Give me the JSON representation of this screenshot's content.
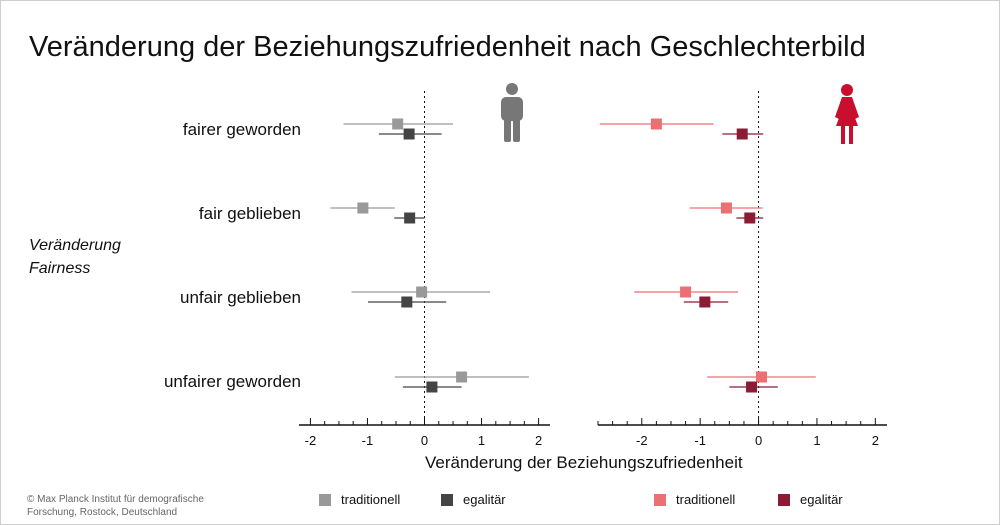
{
  "title": "Veränderung der Beziehungszufriedenheit nach Geschlechterbild",
  "y_axis_label": [
    "Veränderung",
    "Fairness"
  ],
  "x_axis_label": "Veränderung der Beziehungszufriedenheit",
  "credit": [
    "© Max Planck Institut für demografische",
    "Forschung, Rostock, Deutschland"
  ],
  "colors": {
    "men_traditional": "#999999",
    "men_egalitarian": "#444444",
    "women_traditional": "#ec6f74",
    "women_egalitarian": "#8c1b34",
    "man_icon": "#777777",
    "woman_icon": "#c8102e"
  },
  "legend": {
    "men": [
      {
        "label": "traditionell",
        "color": "#999999"
      },
      {
        "label": "egalitär",
        "color": "#444444"
      }
    ],
    "women": [
      {
        "label": "traditionell",
        "color": "#ec6f74"
      },
      {
        "label": "egalitär",
        "color": "#8c1b34"
      }
    ]
  },
  "chart_data": [
    {
      "type": "scatter",
      "panel": "men",
      "icon": "man-icon",
      "categories": [
        "fairer geworden",
        "fair geblieben",
        "unfair geblieben",
        "unfairer geworden"
      ],
      "xlim": [
        -2.2,
        2.2
      ],
      "ticks": [
        -2,
        -1,
        0,
        1,
        2
      ],
      "tick_labels": [
        "-2",
        "-1",
        "0",
        "1",
        "2"
      ],
      "reference_line": 0,
      "series": [
        {
          "name": "traditionell",
          "color": "#999999",
          "estimate": [
            -0.47,
            -1.08,
            -0.05,
            0.65
          ],
          "ci_low": [
            -1.42,
            -1.65,
            -1.28,
            -0.52
          ],
          "ci_high": [
            0.5,
            -0.52,
            1.15,
            1.83
          ]
        },
        {
          "name": "egalitär",
          "color": "#444444",
          "estimate": [
            -0.27,
            -0.26,
            -0.31,
            0.13
          ],
          "ci_low": [
            -0.8,
            -0.53,
            -0.99,
            -0.38
          ],
          "ci_high": [
            0.3,
            0.0,
            0.38,
            0.65
          ]
        }
      ]
    },
    {
      "type": "scatter",
      "panel": "women",
      "icon": "woman-icon",
      "categories": [
        "fairer geworden",
        "fair geblieben",
        "unfair geblieben",
        "unfairer geworden"
      ],
      "xlim": [
        -2.75,
        2.2
      ],
      "ticks": [
        -2,
        -1,
        0,
        1,
        2
      ],
      "tick_labels": [
        "-2",
        "-1",
        "0",
        "1",
        "2"
      ],
      "reference_line": 0,
      "series": [
        {
          "name": "traditionell",
          "color": "#ec6f74",
          "estimate": [
            -1.75,
            -0.55,
            -1.25,
            0.05
          ],
          "ci_low": [
            -2.72,
            -1.18,
            -2.13,
            -0.88
          ],
          "ci_high": [
            -0.77,
            0.07,
            -0.35,
            0.98
          ]
        },
        {
          "name": "egalitär",
          "color": "#8c1b34",
          "estimate": [
            -0.28,
            -0.15,
            -0.92,
            -0.12
          ],
          "ci_low": [
            -0.62,
            -0.38,
            -1.28,
            -0.5
          ],
          "ci_high": [
            0.08,
            0.08,
            -0.52,
            0.33
          ]
        }
      ]
    }
  ]
}
